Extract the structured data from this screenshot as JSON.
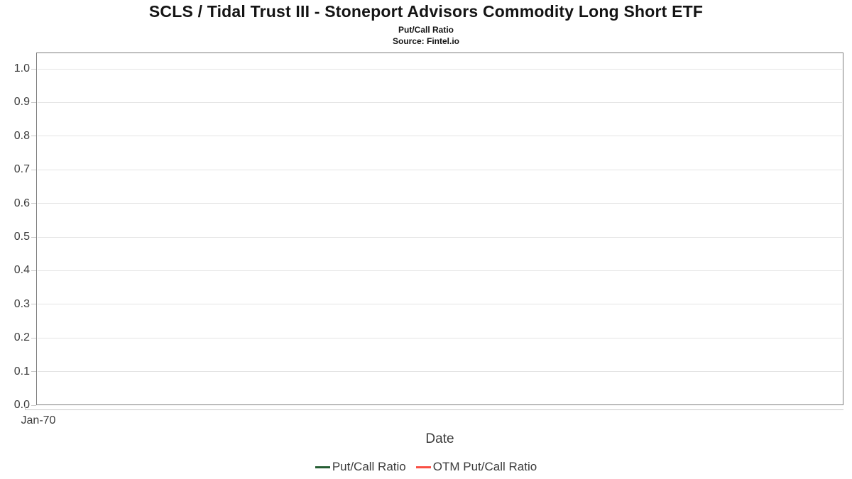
{
  "header": {
    "title": "SCLS / Tidal Trust III - Stoneport Advisors Commodity Long Short ETF",
    "subtitle": "Put/Call Ratio",
    "source": "Source: Fintel.io"
  },
  "chart_data": {
    "type": "line",
    "title": "SCLS / Tidal Trust III - Stoneport Advisors Commodity Long Short ETF",
    "subtitle": "Put/Call Ratio",
    "source": "Source: Fintel.io",
    "xlabel": "Date",
    "ylabel": "",
    "ylim": [
      0.0,
      1.05
    ],
    "yticks": [
      1.0,
      0.9,
      0.8,
      0.7,
      0.6,
      0.5,
      0.4,
      0.3,
      0.2,
      0.1,
      0.0
    ],
    "ytick_labels": [
      "1.0",
      "0.9",
      "0.8",
      "0.7",
      "0.6",
      "0.5",
      "0.4",
      "0.3",
      "0.2",
      "0.1",
      "0.0"
    ],
    "xtick_labels": [
      "Jan-70"
    ],
    "grid": "horizontal",
    "legend_position": "bottom",
    "plot_border_color": "#7d7d7d",
    "gridline_color": "#e4e4e4",
    "series": [
      {
        "name": "Put/Call Ratio",
        "color": "#255d33",
        "x": [],
        "values": []
      },
      {
        "name": "OTM Put/Call Ratio",
        "color": "#f94f44",
        "x": [],
        "values": []
      }
    ]
  }
}
